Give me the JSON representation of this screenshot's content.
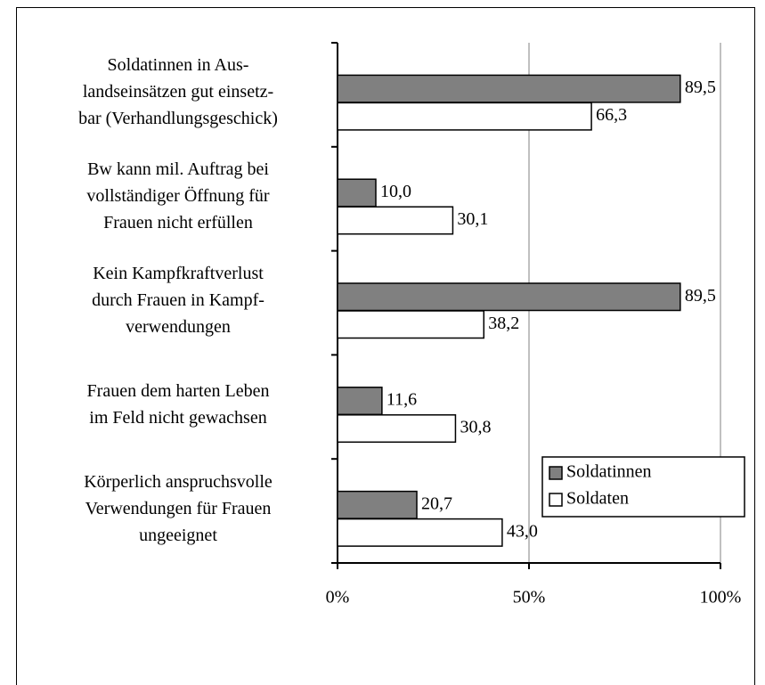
{
  "chart_data": {
    "type": "hbar",
    "categories": [
      "Soldatinnen in Aus-\nlandseinsätzen gut einsetz-\nbar (Verhandlungsgeschick)",
      "Bw kann mil. Auftrag bei\nvollständiger Öffnung für\nFrauen nicht erfüllen",
      "Kein Kampfkraftverlust\ndurch Frauen in Kampf-\nverwendungen",
      "Frauen dem harten Leben\nim Feld nicht gewachsen",
      "Körperlich anspruchsvolle\nVerwendungen für Frauen\nungeeignet"
    ],
    "series": [
      {
        "name": "Soldatinnen",
        "color": "#808080",
        "values": [
          89.5,
          10.0,
          89.5,
          11.6,
          20.7
        ],
        "value_labels": [
          "89,5",
          "10,0",
          "89,5",
          "11,6",
          "20,7"
        ]
      },
      {
        "name": "Soldaten",
        "color": "#ffffff",
        "values": [
          66.3,
          30.1,
          38.2,
          30.8,
          43.0
        ],
        "value_labels": [
          "66,3",
          "30,1",
          "38,2",
          "30,8",
          "43,0"
        ]
      }
    ],
    "xlim": [
      0,
      100
    ],
    "xticks": [
      {
        "value": 0,
        "label": "0%"
      },
      {
        "value": 50,
        "label": "50%"
      },
      {
        "value": 100,
        "label": "100%"
      }
    ],
    "grid": true,
    "legend": "lower right"
  }
}
